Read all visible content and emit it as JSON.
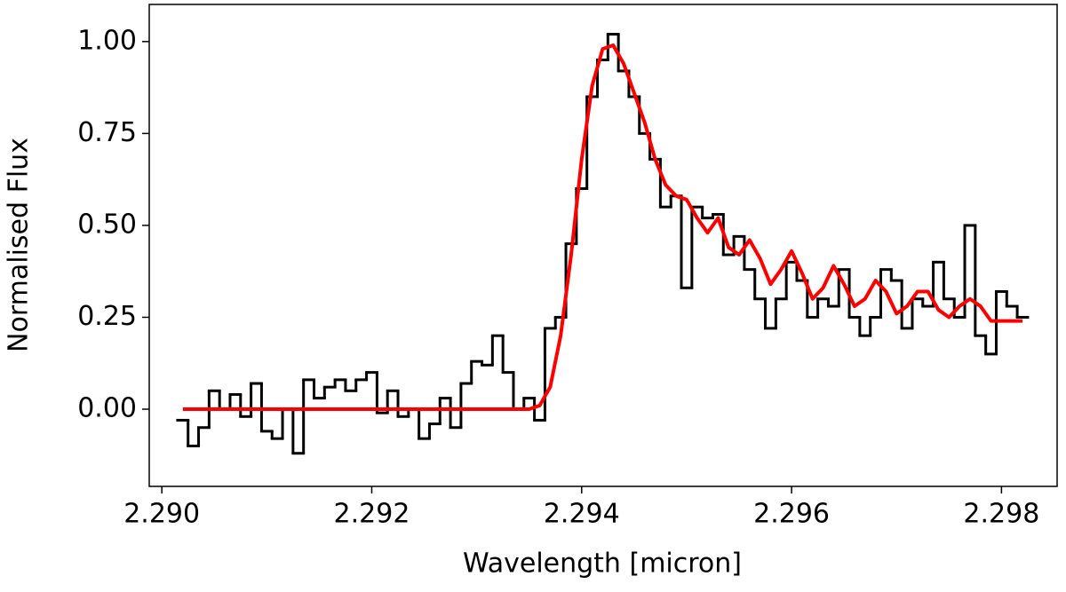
{
  "chart_data": {
    "type": "line",
    "xlabel": "Wavelength [micron]",
    "ylabel": "Normalised Flux",
    "xlim": [
      2.28988,
      2.29853
    ],
    "ylim": [
      -0.21,
      1.101
    ],
    "xticks": [
      {
        "value": 2.29,
        "label": "2.290"
      },
      {
        "value": 2.292,
        "label": "2.292"
      },
      {
        "value": 2.294,
        "label": "2.294"
      },
      {
        "value": 2.296,
        "label": "2.296"
      },
      {
        "value": 2.298,
        "label": "2.298"
      }
    ],
    "yticks": [
      {
        "value": 0.0,
        "label": "0.00"
      },
      {
        "value": 0.25,
        "label": "0.25"
      },
      {
        "value": 0.5,
        "label": "0.50"
      },
      {
        "value": 0.75,
        "label": "0.75"
      },
      {
        "value": 1.0,
        "label": "1.00"
      }
    ],
    "x": [
      2.2902,
      2.2903,
      2.2904,
      2.2905,
      2.2906,
      2.2907,
      2.2908,
      2.2909,
      2.291,
      2.2911,
      2.2912,
      2.2913,
      2.2914,
      2.2915,
      2.2916,
      2.2917,
      2.2918,
      2.2919,
      2.292,
      2.2921,
      2.2922,
      2.2923,
      2.2924,
      2.2925,
      2.2926,
      2.2927,
      2.2928,
      2.2929,
      2.293,
      2.2931,
      2.2932,
      2.2933,
      2.2934,
      2.2935,
      2.2936,
      2.2937,
      2.2938,
      2.2939,
      2.294,
      2.2941,
      2.2942,
      2.2943,
      2.2944,
      2.2945,
      2.2946,
      2.2947,
      2.2948,
      2.2949,
      2.295,
      2.2951,
      2.2952,
      2.2953,
      2.2954,
      2.2955,
      2.2956,
      2.2957,
      2.2958,
      2.2959,
      2.296,
      2.2961,
      2.2962,
      2.2963,
      2.2964,
      2.2965,
      2.2966,
      2.2967,
      2.2968,
      2.2969,
      2.297,
      2.2971,
      2.2972,
      2.2973,
      2.2974,
      2.2975,
      2.2976,
      2.2977,
      2.2978,
      2.2979,
      2.298,
      2.2981,
      2.2982
    ],
    "series": [
      {
        "color": "#000000",
        "drawstyle": "steps",
        "values": [
          -0.03,
          -0.1,
          -0.05,
          0.05,
          0.0,
          0.04,
          -0.02,
          0.07,
          -0.06,
          -0.08,
          0.0,
          -0.12,
          0.08,
          0.03,
          0.06,
          0.08,
          0.05,
          0.08,
          0.1,
          -0.01,
          0.05,
          -0.02,
          0.0,
          -0.08,
          -0.04,
          0.03,
          -0.05,
          0.07,
          0.13,
          0.12,
          0.2,
          0.1,
          0.0,
          0.03,
          -0.03,
          0.22,
          0.25,
          0.45,
          0.6,
          0.85,
          0.95,
          1.02,
          0.92,
          0.85,
          0.75,
          0.68,
          0.55,
          0.58,
          0.33,
          0.55,
          0.52,
          0.53,
          0.42,
          0.47,
          0.38,
          0.3,
          0.22,
          0.3,
          0.4,
          0.35,
          0.25,
          0.3,
          0.28,
          0.38,
          0.25,
          0.2,
          0.25,
          0.38,
          0.35,
          0.22,
          0.3,
          0.28,
          0.4,
          0.3,
          0.25,
          0.5,
          0.2,
          0.15,
          0.32,
          0.28,
          0.25
        ]
      },
      {
        "color": "#ff0000",
        "drawstyle": "smooth",
        "values": [
          0,
          0,
          0,
          0,
          0,
          0,
          0,
          0,
          0,
          0,
          0,
          0,
          0,
          0,
          0,
          0,
          0,
          0,
          0,
          0,
          0,
          0,
          0,
          0,
          0,
          0,
          0,
          0,
          0,
          0,
          0,
          0,
          0,
          0,
          0.01,
          0.06,
          0.2,
          0.42,
          0.68,
          0.88,
          0.98,
          0.99,
          0.94,
          0.86,
          0.78,
          0.68,
          0.61,
          0.58,
          0.57,
          0.52,
          0.48,
          0.52,
          0.44,
          0.42,
          0.46,
          0.41,
          0.34,
          0.38,
          0.43,
          0.37,
          0.3,
          0.33,
          0.39,
          0.34,
          0.28,
          0.3,
          0.35,
          0.32,
          0.26,
          0.28,
          0.32,
          0.32,
          0.27,
          0.25,
          0.28,
          0.3,
          0.28,
          0.24,
          0.24,
          0.24,
          0.24
        ]
      }
    ]
  }
}
